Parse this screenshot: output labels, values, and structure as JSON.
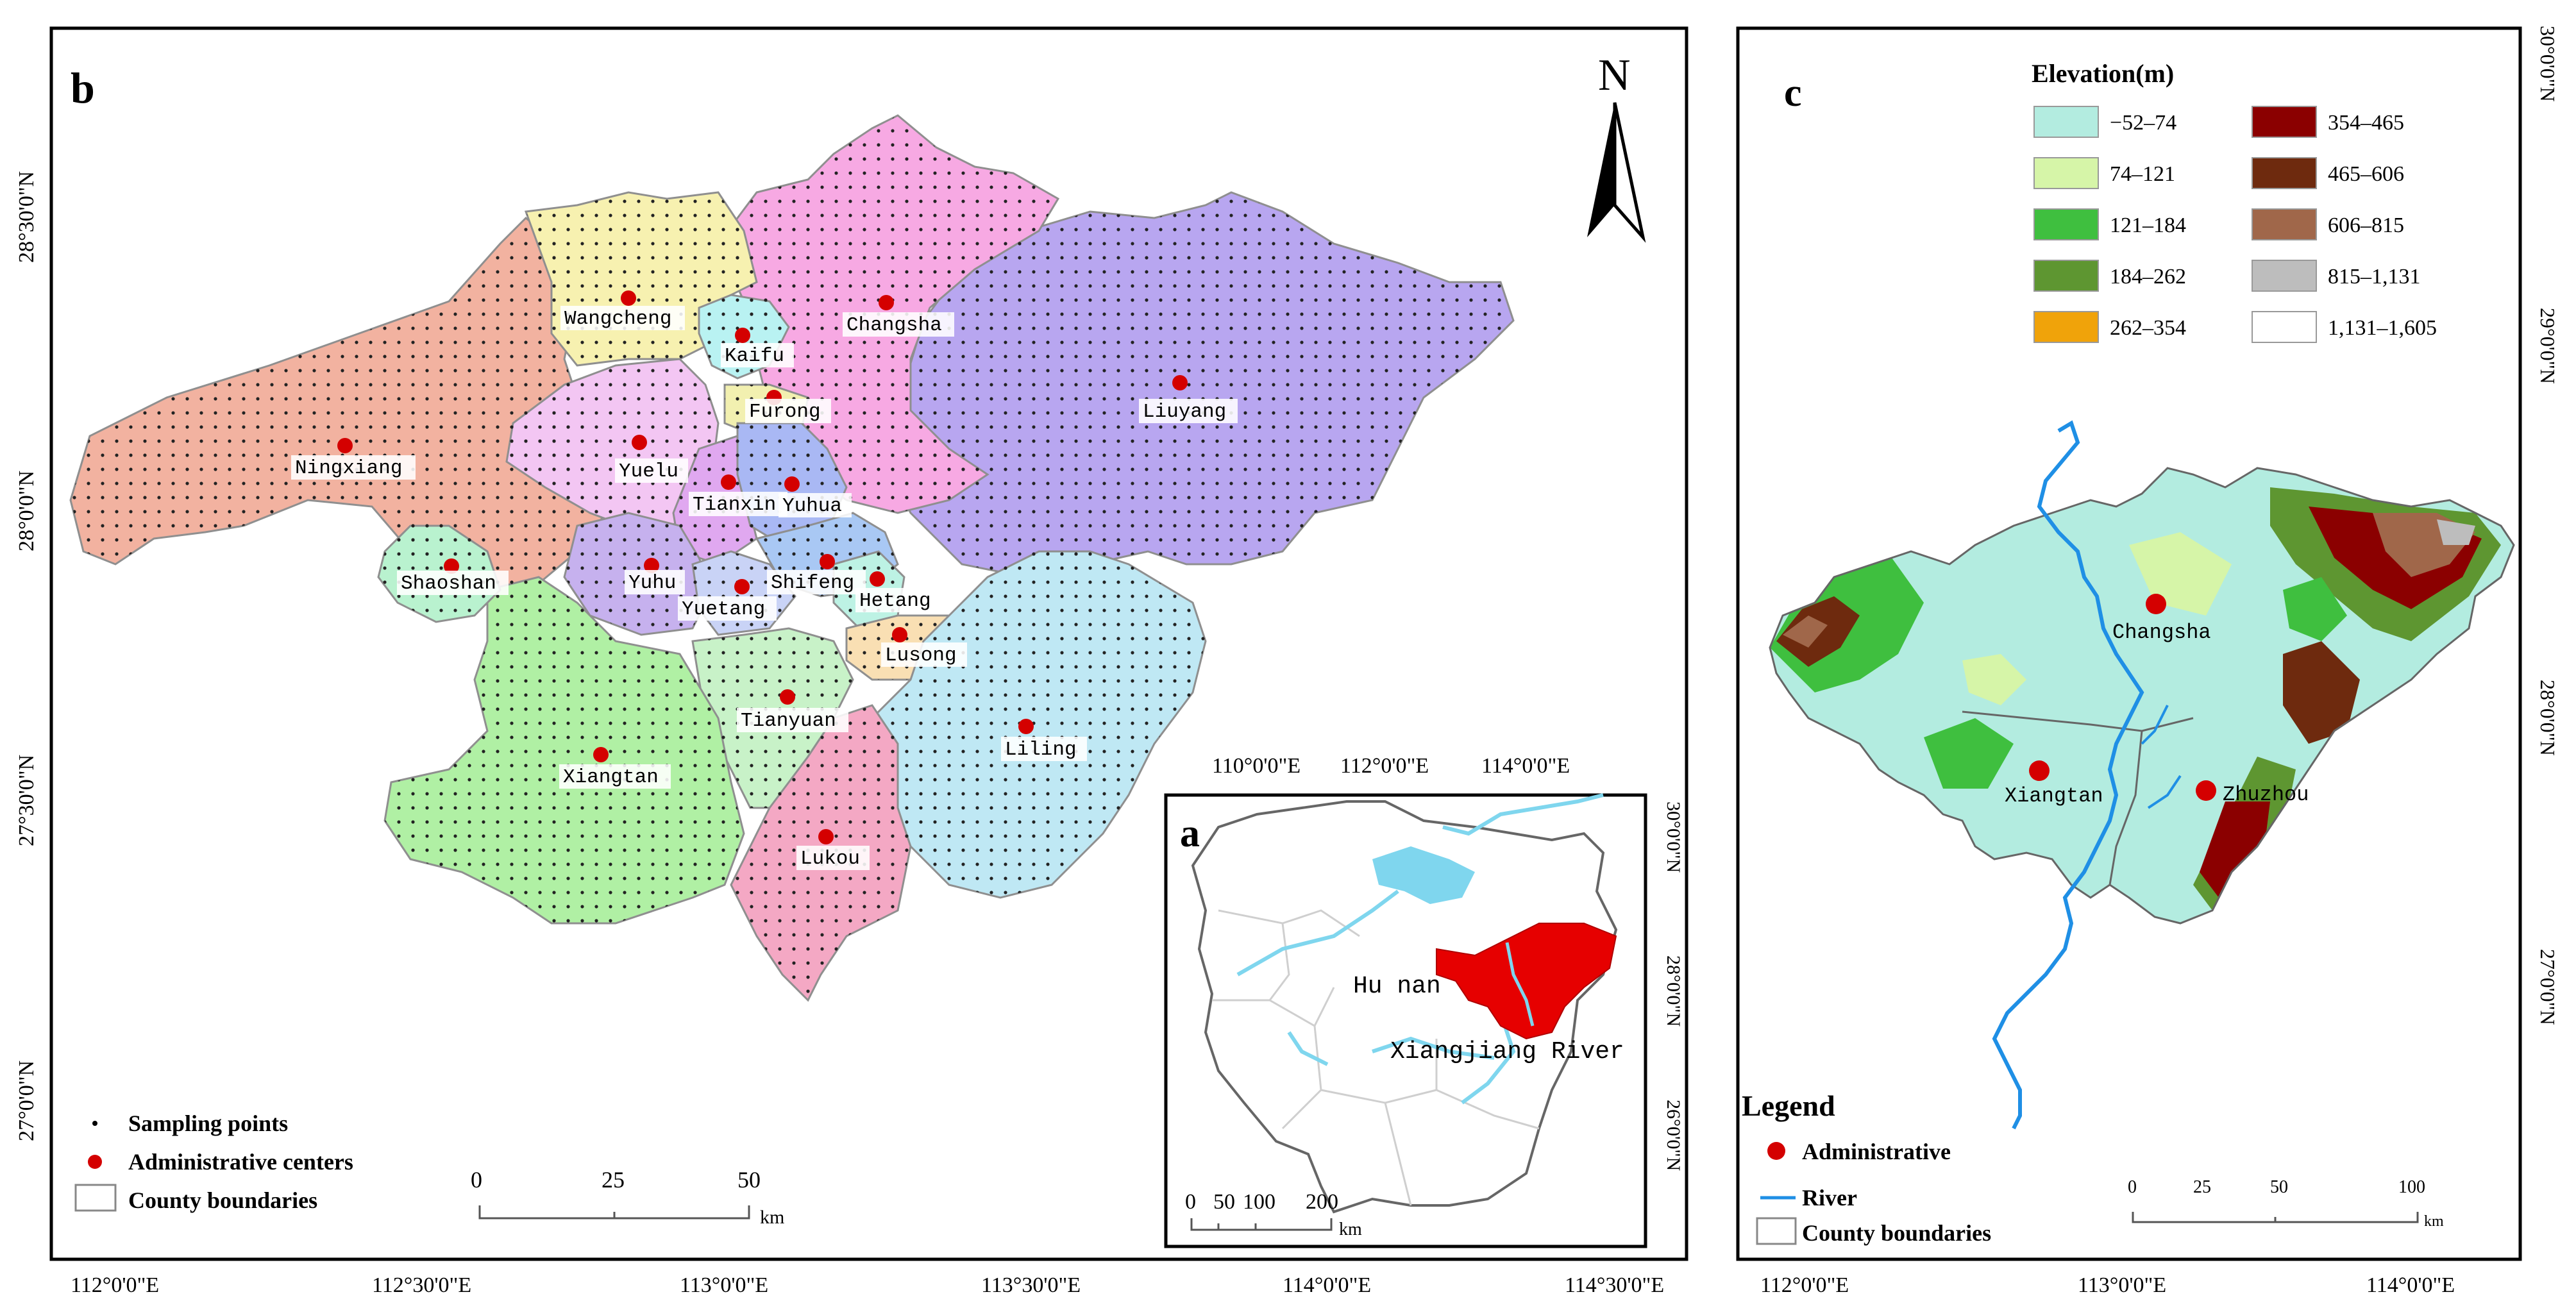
{
  "panel_b": {
    "letter": "b",
    "north": "N",
    "lat_labels": [
      "28°30'0\"N",
      "28°0'0\"N",
      "27°30'0\"N",
      "27°0'0\"N"
    ],
    "lon_labels": [
      "112°0'0\"E",
      "112°30'0\"E",
      "113°0'0\"E",
      "113°30'0\"E",
      "114°0'0\"E",
      "114°30'0\"E"
    ],
    "places": [
      {
        "name": "Wangcheng",
        "color": "#f7f1b0"
      },
      {
        "name": "Kaifu",
        "color": "#b9f2f2"
      },
      {
        "name": "Changsha",
        "color": "#f7a9e3"
      },
      {
        "name": "Liuyang",
        "color": "#b8a6f0"
      },
      {
        "name": "Furong",
        "color": "#f2f0b0"
      },
      {
        "name": "Ningxiang",
        "color": "#f2b2a0"
      },
      {
        "name": "Yuelu",
        "color": "#f3c6f3"
      },
      {
        "name": "Tianxin",
        "color": "#e0a8f0"
      },
      {
        "name": "Yuhua",
        "color": "#a9b8f4"
      },
      {
        "name": "Shaoshan",
        "color": "#b9f2cf"
      },
      {
        "name": "Yuhu",
        "color": "#c6b1ee"
      },
      {
        "name": "Shifeng",
        "color": "#a9c8f4"
      },
      {
        "name": "Yuetang",
        "color": "#c9d3f6"
      },
      {
        "name": "Hetang",
        "color": "#bdf2e4"
      },
      {
        "name": "Lusong",
        "color": "#f9dfb3"
      },
      {
        "name": "Tianyuan",
        "color": "#c8f2c8"
      },
      {
        "name": "Xiangtan",
        "color": "#b0f0a4"
      },
      {
        "name": "Liling",
        "color": "#bfe8f4"
      },
      {
        "name": "Lukou",
        "color": "#f4a8c4"
      }
    ],
    "legend": {
      "sampling": "Sampling points",
      "admin": "Administrative centers",
      "county": "County boundaries"
    },
    "scale": {
      "ticks": [
        "0",
        "25",
        "50"
      ],
      "unit": "km"
    }
  },
  "panel_a": {
    "letter": "a",
    "lon_labels": [
      "110°0'0\"E",
      "112°0'0\"E",
      "114°0'0\"E"
    ],
    "lat_labels": [
      "30°0'0\"N",
      "28°0'0\"N",
      "26°0'0\"N"
    ],
    "province": "Hu nan",
    "river": "Xiangjiang River",
    "scale": {
      "ticks": [
        "0",
        "50",
        "100",
        "200"
      ],
      "unit": "km"
    },
    "highlight_color": "#e60000"
  },
  "panel_c": {
    "letter": "c",
    "elevation_title": "Elevation(m)",
    "elevation_classes": [
      {
        "label": "−52–74",
        "color": "#b3ece0"
      },
      {
        "label": "74–121",
        "color": "#d6f5a8"
      },
      {
        "label": "121–184",
        "color": "#3fbf3f"
      },
      {
        "label": "184–262",
        "color": "#5e9631"
      },
      {
        "label": "262–354",
        "color": "#f0a30a"
      },
      {
        "label": "354–465",
        "color": "#8b0000"
      },
      {
        "label": "465–606",
        "color": "#6e2a0e"
      },
      {
        "label": "606–815",
        "color": "#a0674a"
      },
      {
        "label": "815–1,131",
        "color": "#bdbdbd"
      },
      {
        "label": "1,131–1,605",
        "color": "#ffffff"
      }
    ],
    "cities": [
      "Changsha",
      "Xiangtan",
      "Zhuzhou"
    ],
    "lat_labels": [
      "30°0'0\"N",
      "29°0'0\"N",
      "28°0'0\"N",
      "27°0'0\"N"
    ],
    "lon_labels": [
      "112°0'0\"E",
      "113°0'0\"E",
      "114°0'0\"E"
    ],
    "legend": {
      "title": "Legend",
      "admin": "Administrative",
      "river": "River",
      "county": "County boundaries"
    },
    "scale": {
      "ticks": [
        "0",
        "25",
        "50",
        "100"
      ],
      "unit": "km"
    }
  }
}
